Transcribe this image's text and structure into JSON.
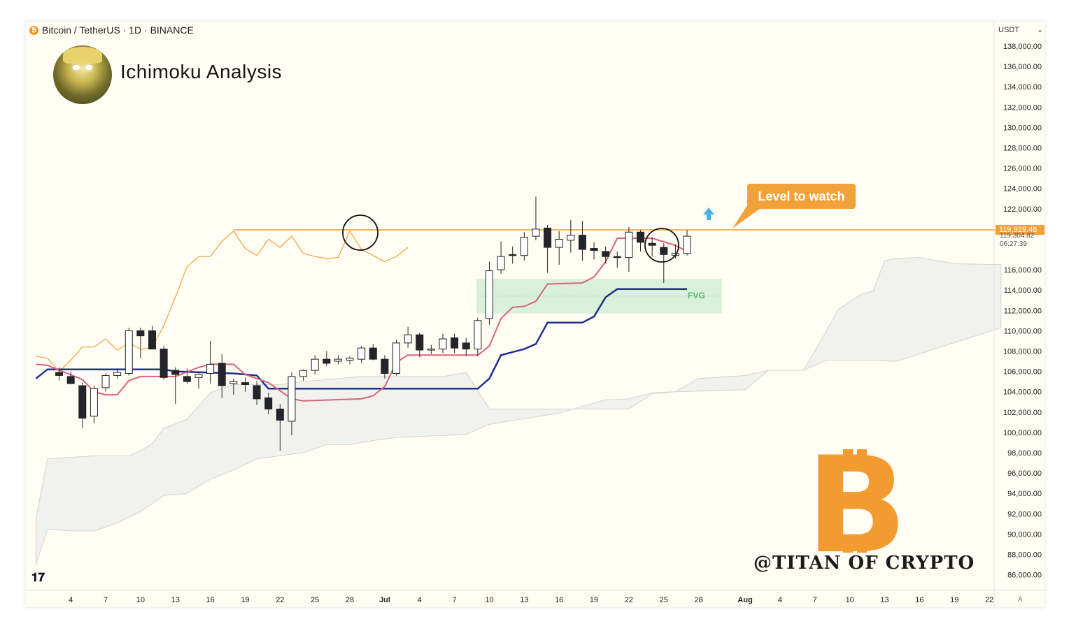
{
  "header": {
    "symbol_title": "Bitcoin / TetherUS · 1D · BINANCE",
    "analysis_title": "Ichimoku Analysis",
    "currency": "USDT",
    "currency_dropdown_icon": "chevron-down-icon"
  },
  "annotations": {
    "level_label": "Level to watch",
    "fvg_label": "FVG",
    "watermark": "@TITAN OF CRYPTO",
    "arrow_icon": "up-arrow-icon",
    "logo": "bitcoin-logo"
  },
  "price_scale": {
    "current_price_label": "119,919.48",
    "secondary_price_label": "119,304.82",
    "countdown_label": "06:27:39",
    "auto_label": "A"
  },
  "colors": {
    "background": "#fffdf4",
    "kijun": "#1f2f8c",
    "tenkan": "#d9647a",
    "lagging_span": "#f2a23a",
    "level_line": "#f2a23a",
    "cloud": "#dcdcdc",
    "fvg_zone": "#bfe8c7",
    "bear_candle": "#23252b",
    "bull_candle": "#ffffff"
  },
  "chart_data": {
    "type": "candlestick",
    "title": "Bitcoin / TetherUS · 1D · BINANCE",
    "y_ticks": [
      "138,000.00",
      "136,000.00",
      "134,000.00",
      "132,000.00",
      "130,000.00",
      "128,000.00",
      "126,000.00",
      "124,000.00",
      "122,000.00",
      "116,000.00",
      "114,000.00",
      "112,000.00",
      "110,000.00",
      "108,000.00",
      "106,000.00",
      "104,000.00",
      "102,000.00",
      "100,000.00",
      "98,000.00",
      "96,000.00",
      "94,000.00",
      "92,000.00",
      "90,000.00",
      "88,000.00",
      "86,000.00"
    ],
    "x_ticks": [
      "4",
      "7",
      "10",
      "13",
      "16",
      "19",
      "22",
      "25",
      "28",
      "Jul",
      "4",
      "7",
      "10",
      "13",
      "16",
      "19",
      "22",
      "25",
      "28",
      "Aug",
      "4",
      "7",
      "10",
      "13",
      "16",
      "19",
      "22"
    ],
    "x_tick_days": [
      4,
      7,
      10,
      13,
      16,
      19,
      22,
      25,
      28,
      31,
      34,
      37,
      40,
      43,
      46,
      49,
      52,
      55,
      58,
      62,
      65,
      68,
      71,
      74,
      77,
      80,
      83
    ],
    "ylim": [
      85000,
      139000
    ],
    "x_range": [
      1,
      86
    ],
    "grid": false,
    "level_to_watch": 119919.48,
    "fvg": {
      "x_start": 38.9,
      "x_end": 60,
      "low": 111700,
      "high": 115100
    },
    "candles": [
      {
        "d": 3,
        "o": 105900,
        "h": 106400,
        "l": 105100,
        "c": 105600
      },
      {
        "d": 4,
        "o": 105500,
        "h": 106000,
        "l": 104900,
        "c": 104800
      },
      {
        "d": 5,
        "o": 104600,
        "h": 104900,
        "l": 100400,
        "c": 101400
      },
      {
        "d": 6,
        "o": 101600,
        "h": 104600,
        "l": 100900,
        "c": 104300
      },
      {
        "d": 7,
        "o": 104400,
        "h": 105800,
        "l": 104000,
        "c": 105600
      },
      {
        "d": 8,
        "o": 105600,
        "h": 106300,
        "l": 105300,
        "c": 105900
      },
      {
        "d": 9,
        "o": 105800,
        "h": 110300,
        "l": 105600,
        "c": 110000
      },
      {
        "d": 10,
        "o": 110000,
        "h": 110300,
        "l": 107300,
        "c": 109500
      },
      {
        "d": 11,
        "o": 110000,
        "h": 110500,
        "l": 108400,
        "c": 108200
      },
      {
        "d": 12,
        "o": 108200,
        "h": 108500,
        "l": 105200,
        "c": 105400
      },
      {
        "d": 13,
        "o": 106100,
        "h": 106400,
        "l": 102800,
        "c": 105700
      },
      {
        "d": 14,
        "o": 105500,
        "h": 106300,
        "l": 104800,
        "c": 105000
      },
      {
        "d": 15,
        "o": 105400,
        "h": 105900,
        "l": 104300,
        "c": 105700
      },
      {
        "d": 16,
        "o": 105800,
        "h": 109000,
        "l": 104800,
        "c": 106700
      },
      {
        "d": 17,
        "o": 106800,
        "h": 107700,
        "l": 103400,
        "c": 104600
      },
      {
        "d": 18,
        "o": 104800,
        "h": 105300,
        "l": 103700,
        "c": 105000
      },
      {
        "d": 19,
        "o": 104900,
        "h": 105400,
        "l": 104000,
        "c": 104700
      },
      {
        "d": 20,
        "o": 104600,
        "h": 105100,
        "l": 102700,
        "c": 103300
      },
      {
        "d": 21,
        "o": 103400,
        "h": 103900,
        "l": 101800,
        "c": 102300
      },
      {
        "d": 22,
        "o": 102300,
        "h": 102800,
        "l": 98200,
        "c": 101200
      },
      {
        "d": 23,
        "o": 101100,
        "h": 105900,
        "l": 99700,
        "c": 105500
      },
      {
        "d": 24,
        "o": 105500,
        "h": 106200,
        "l": 105100,
        "c": 106100
      },
      {
        "d": 25,
        "o": 106100,
        "h": 107600,
        "l": 105700,
        "c": 107200
      },
      {
        "d": 26,
        "o": 107200,
        "h": 108000,
        "l": 106500,
        "c": 106800
      },
      {
        "d": 27,
        "o": 107000,
        "h": 107600,
        "l": 106700,
        "c": 107200
      },
      {
        "d": 28,
        "o": 107100,
        "h": 107500,
        "l": 106700,
        "c": 107300
      },
      {
        "d": 29,
        "o": 107200,
        "h": 108500,
        "l": 106800,
        "c": 108300
      },
      {
        "d": 30,
        "o": 108300,
        "h": 108700,
        "l": 107100,
        "c": 107200
      },
      {
        "d": 31,
        "o": 107200,
        "h": 107600,
        "l": 105300,
        "c": 105800
      },
      {
        "d": 32,
        "o": 105800,
        "h": 109100,
        "l": 105600,
        "c": 108800
      },
      {
        "d": 33,
        "o": 108800,
        "h": 110400,
        "l": 108300,
        "c": 109600
      },
      {
        "d": 34,
        "o": 109600,
        "h": 109800,
        "l": 107400,
        "c": 108100
      },
      {
        "d": 35,
        "o": 108100,
        "h": 108600,
        "l": 107700,
        "c": 108200
      },
      {
        "d": 36,
        "o": 108200,
        "h": 109700,
        "l": 107800,
        "c": 109200
      },
      {
        "d": 37,
        "o": 109300,
        "h": 109700,
        "l": 107800,
        "c": 108300
      },
      {
        "d": 38,
        "o": 108800,
        "h": 109300,
        "l": 107500,
        "c": 108200
      },
      {
        "d": 39,
        "o": 108200,
        "h": 111300,
        "l": 107500,
        "c": 111000
      },
      {
        "d": 40,
        "o": 111200,
        "h": 116800,
        "l": 110600,
        "c": 115900
      },
      {
        "d": 41,
        "o": 116000,
        "h": 118800,
        "l": 115600,
        "c": 117300
      },
      {
        "d": 42,
        "o": 117500,
        "h": 118300,
        "l": 116600,
        "c": 117400
      },
      {
        "d": 43,
        "o": 117400,
        "h": 119700,
        "l": 116900,
        "c": 119200
      },
      {
        "d": 44,
        "o": 119300,
        "h": 123200,
        "l": 118900,
        "c": 120000
      },
      {
        "d": 45,
        "o": 120100,
        "h": 120400,
        "l": 115700,
        "c": 118200
      },
      {
        "d": 46,
        "o": 118200,
        "h": 119800,
        "l": 116500,
        "c": 119000
      },
      {
        "d": 47,
        "o": 118900,
        "h": 120900,
        "l": 117700,
        "c": 119400
      },
      {
        "d": 48,
        "o": 119400,
        "h": 120800,
        "l": 116900,
        "c": 118000
      },
      {
        "d": 49,
        "o": 118100,
        "h": 118700,
        "l": 117000,
        "c": 117900
      },
      {
        "d": 50,
        "o": 117800,
        "h": 118300,
        "l": 116600,
        "c": 117300
      },
      {
        "d": 51,
        "o": 117300,
        "h": 117800,
        "l": 116200,
        "c": 117200
      },
      {
        "d": 52,
        "o": 117200,
        "h": 120200,
        "l": 115800,
        "c": 119700
      },
      {
        "d": 53,
        "o": 119700,
        "h": 119900,
        "l": 117800,
        "c": 118700
      },
      {
        "d": 54,
        "o": 118600,
        "h": 119200,
        "l": 117300,
        "c": 118400
      },
      {
        "d": 55,
        "o": 118200,
        "h": 118600,
        "l": 114700,
        "c": 117500
      },
      {
        "d": 56,
        "o": 117400,
        "h": 118500,
        "l": 117100,
        "c": 117600
      },
      {
        "d": 57,
        "o": 117600,
        "h": 119900,
        "l": 117400,
        "c": 119300
      }
    ],
    "kijun": [
      [
        1,
        105300
      ],
      [
        2,
        106200
      ],
      [
        12,
        106200
      ],
      [
        13,
        106000
      ],
      [
        18,
        105800
      ],
      [
        20,
        105600
      ],
      [
        21,
        104300
      ],
      [
        39,
        104300
      ],
      [
        40,
        105300
      ],
      [
        41,
        107600
      ],
      [
        43,
        108200
      ],
      [
        44,
        108700
      ],
      [
        45,
        110800
      ],
      [
        48,
        110800
      ],
      [
        49,
        111400
      ],
      [
        50,
        113300
      ],
      [
        51,
        114100
      ],
      [
        57,
        114100
      ]
    ],
    "tenkan": [
      [
        1,
        106700
      ],
      [
        2,
        106600
      ],
      [
        5,
        105200
      ],
      [
        6,
        104000
      ],
      [
        7,
        103700
      ],
      [
        8,
        103700
      ],
      [
        9,
        105100
      ],
      [
        10,
        105500
      ],
      [
        13,
        105500
      ],
      [
        15,
        106400
      ],
      [
        16,
        106700
      ],
      [
        18,
        106700
      ],
      [
        19,
        105700
      ],
      [
        21,
        104900
      ],
      [
        23,
        103300
      ],
      [
        24,
        103100
      ],
      [
        29,
        103300
      ],
      [
        30,
        103600
      ],
      [
        31,
        104500
      ],
      [
        32,
        106900
      ],
      [
        33,
        107600
      ],
      [
        39,
        107600
      ],
      [
        40,
        108500
      ],
      [
        41,
        111200
      ],
      [
        42,
        112300
      ],
      [
        43,
        112400
      ],
      [
        44,
        112900
      ],
      [
        45,
        114600
      ],
      [
        48,
        114700
      ],
      [
        49,
        115300
      ],
      [
        50,
        116800
      ],
      [
        51,
        119100
      ],
      [
        54,
        119100
      ],
      [
        56,
        118400
      ],
      [
        57,
        117800
      ]
    ],
    "lagging_span": [
      [
        1,
        107500
      ],
      [
        2,
        107300
      ],
      [
        3,
        106000
      ],
      [
        4,
        107100
      ],
      [
        5,
        108400
      ],
      [
        6,
        108400
      ],
      [
        7,
        109200
      ],
      [
        8,
        108100
      ],
      [
        9,
        108800
      ],
      [
        10,
        108200
      ],
      [
        11,
        108300
      ],
      [
        12,
        110500
      ],
      [
        13,
        113300
      ],
      [
        14,
        116300
      ],
      [
        15,
        117300
      ],
      [
        16,
        117300
      ],
      [
        17,
        118800
      ],
      [
        18,
        119800
      ],
      [
        19,
        118100
      ],
      [
        20,
        117400
      ],
      [
        21,
        119000
      ],
      [
        22,
        118200
      ],
      [
        23,
        119300
      ],
      [
        24,
        117600
      ],
      [
        25,
        117300
      ],
      [
        26,
        117100
      ],
      [
        27,
        117200
      ],
      [
        28,
        119800
      ],
      [
        29,
        118000
      ],
      [
        30,
        117400
      ],
      [
        31,
        116800
      ],
      [
        32,
        117300
      ],
      [
        33,
        118200
      ]
    ],
    "cloud_top": [
      [
        1,
        91500
      ],
      [
        2,
        97400
      ],
      [
        6,
        97700
      ],
      [
        9,
        97700
      ],
      [
        10,
        98200
      ],
      [
        11,
        98900
      ],
      [
        12,
        100400
      ],
      [
        14,
        101300
      ],
      [
        15,
        102600
      ],
      [
        16,
        103900
      ],
      [
        18,
        104700
      ],
      [
        22,
        104700
      ],
      [
        24,
        105000
      ],
      [
        29,
        105500
      ],
      [
        36,
        105500
      ],
      [
        38,
        105900
      ],
      [
        40,
        102300
      ],
      [
        52,
        102300
      ],
      [
        54,
        103800
      ],
      [
        56,
        104000
      ],
      [
        62,
        104200
      ],
      [
        64,
        106100
      ],
      [
        67,
        106100
      ],
      [
        69,
        110000
      ],
      [
        70,
        112100
      ],
      [
        72,
        113600
      ],
      [
        73,
        113900
      ],
      [
        74,
        116900
      ],
      [
        75,
        117100
      ],
      [
        77,
        117200
      ],
      [
        79,
        116800
      ],
      [
        80,
        116600
      ],
      [
        84,
        116500
      ]
    ],
    "cloud_bottom": [
      [
        1,
        87000
      ],
      [
        2,
        90500
      ],
      [
        4,
        90300
      ],
      [
        6,
        90300
      ],
      [
        8,
        91100
      ],
      [
        10,
        92200
      ],
      [
        12,
        93800
      ],
      [
        14,
        94000
      ],
      [
        16,
        95400
      ],
      [
        18,
        96300
      ],
      [
        20,
        97400
      ],
      [
        22,
        97700
      ],
      [
        24,
        98000
      ],
      [
        26,
        98800
      ],
      [
        28,
        98800
      ],
      [
        30,
        99200
      ],
      [
        32,
        99500
      ],
      [
        34,
        99600
      ],
      [
        36,
        99700
      ],
      [
        38,
        99800
      ],
      [
        40,
        100800
      ],
      [
        46,
        101900
      ],
      [
        50,
        103200
      ],
      [
        52,
        103300
      ],
      [
        54,
        103900
      ],
      [
        56,
        104000
      ],
      [
        58,
        105300
      ],
      [
        62,
        105600
      ],
      [
        64,
        106100
      ],
      [
        67,
        106100
      ],
      [
        69,
        107100
      ],
      [
        72,
        107100
      ],
      [
        75,
        107000
      ],
      [
        84,
        110300
      ]
    ]
  }
}
